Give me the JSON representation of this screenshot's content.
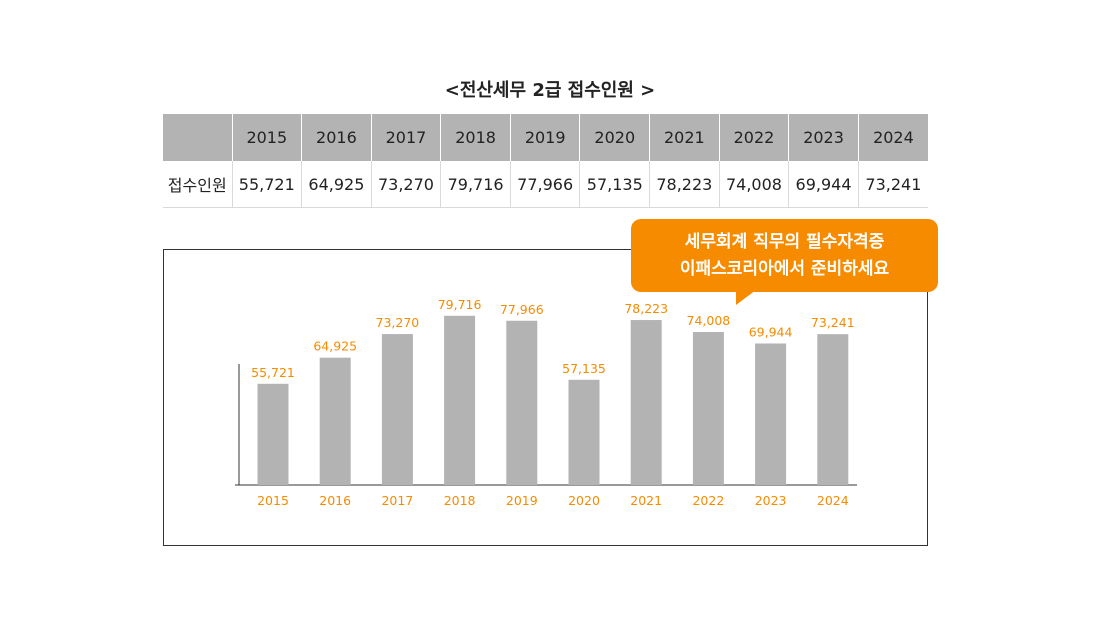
{
  "title": "<전산세무 2급 접수인원 >",
  "table": {
    "row_label": "접수인원",
    "years": [
      "2015",
      "2016",
      "2017",
      "2018",
      "2019",
      "2020",
      "2021",
      "2022",
      "2023",
      "2024"
    ],
    "values": [
      "55,721",
      "64,925",
      "73,270",
      "79,716",
      "77,966",
      "57,135",
      "78,223",
      "74,008",
      "69,944",
      "73,241"
    ]
  },
  "callout": {
    "line1": "세무회계 직무의 필수자격증",
    "line2": "이패스코리아에서 준비하세요"
  },
  "colors": {
    "bar": "#b3b3b3",
    "label": "#f68b00",
    "callout": "#f68b00",
    "header": "#b3b3b3"
  },
  "chart_data": {
    "type": "bar",
    "categories": [
      "2015",
      "2016",
      "2017",
      "2018",
      "2019",
      "2020",
      "2021",
      "2022",
      "2023",
      "2024"
    ],
    "values": [
      55721,
      64925,
      73270,
      79716,
      77966,
      57135,
      78223,
      74008,
      69944,
      73241
    ],
    "value_labels": [
      "55,721",
      "64,925",
      "73,270",
      "79,716",
      "77,966",
      "57,135",
      "78,223",
      "74,008",
      "69,944",
      "73,241"
    ],
    "ylim": [
      20000,
      80000
    ],
    "grid": false
  }
}
